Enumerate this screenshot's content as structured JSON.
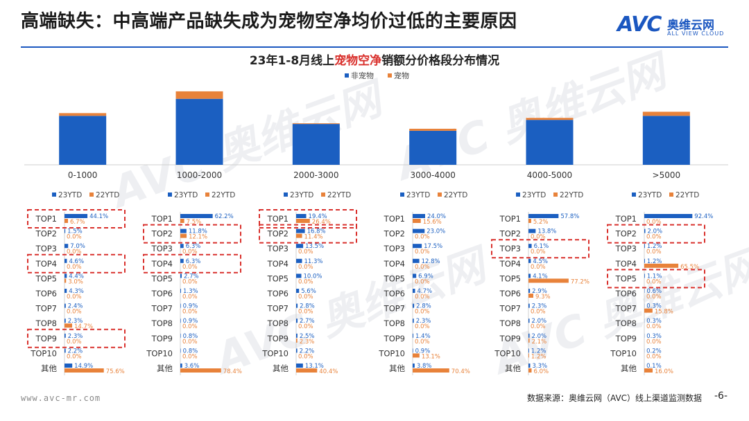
{
  "slide": {
    "title": "高端缺失：中高端产品缺失成为宠物空净均价过低的主要原因",
    "logo_mark": "AVC",
    "logo_cn": "奥维云网",
    "logo_en": "ALL VIEW CLOUD",
    "footer_url": "www.avc-mr.com",
    "footer_source": "数据来源：奥维云网（AVC）线上渠道监测数据",
    "page_number": "-6-",
    "watermark_text": "AVC 奥维云网",
    "watermark_sub": "ALL VIEW CLOUD"
  },
  "colors": {
    "blue": "#1b5fc1",
    "orange": "#e8823a",
    "red_dash": "#d9302c",
    "brand": "#1b57c0"
  },
  "chart_data": [
    {
      "type": "bar",
      "stacked": true,
      "title_parts": [
        {
          "text": "23年1-8月线上",
          "highlight": false
        },
        {
          "text": "宠物空净",
          "highlight": true
        },
        {
          "text": "销额分价格段分布情况",
          "highlight": false
        }
      ],
      "legend": [
        "非宠物",
        "宠物"
      ],
      "legend_position": "top-center",
      "categories": [
        "0-1000",
        "1000-2000",
        "2000-3000",
        "3000-4000",
        "4000-5000",
        ">5000"
      ],
      "series": [
        {
          "name": "非宠物",
          "values": [
            72,
            97,
            60,
            50,
            66,
            72
          ]
        },
        {
          "name": "宠物",
          "values": [
            4,
            11,
            1,
            3,
            3,
            6
          ]
        }
      ],
      "ylim": [
        0,
        112
      ],
      "grid": false
    },
    {
      "type": "bar",
      "orientation": "horizontal",
      "legend": [
        "23YTD",
        "22YTD"
      ],
      "legend_position": "top",
      "rows": [
        "TOP1",
        "TOP2",
        "TOP3",
        "TOP4",
        "TOP5",
        "TOP6",
        "TOP7",
        "TOP8",
        "TOP9",
        "TOP10",
        "其他"
      ],
      "panels": [
        {
          "category": "0-1000",
          "y23": [
            44.1,
            1.5,
            7.0,
            4.6,
            4.4,
            4.3,
            2.4,
            2.3,
            2.3,
            2.2,
            14.9
          ],
          "y22": [
            6.7,
            0.0,
            0.0,
            0.0,
            3.0,
            0.0,
            0.0,
            14.7,
            0.0,
            0.0,
            75.6
          ],
          "highlight_rows": [
            "TOP1",
            "TOP4",
            "TOP9"
          ]
        },
        {
          "category": "1000-2000",
          "y23": [
            62.2,
            11.8,
            6.3,
            6.3,
            2.7,
            1.3,
            0.9,
            0.9,
            0.8,
            0.8,
            3.6
          ],
          "y22": [
            7.5,
            12.1,
            0.0,
            0.0,
            0.0,
            0.0,
            0.0,
            0.0,
            0.0,
            0.0,
            78.4
          ],
          "highlight_rows": [
            "TOP2",
            "TOP4"
          ]
        },
        {
          "category": "2000-3000",
          "y23": [
            19.4,
            16.8,
            13.5,
            11.3,
            10.0,
            5.6,
            2.8,
            2.7,
            2.5,
            2.2,
            13.1
          ],
          "y22": [
            26.4,
            11.4,
            0.0,
            0.0,
            0.0,
            0.0,
            0.0,
            0.0,
            2.3,
            0.0,
            40.4
          ],
          "highlight_rows": [
            "TOP1",
            "TOP2"
          ]
        },
        {
          "category": "3000-4000",
          "y23": [
            24.0,
            23.0,
            17.5,
            12.8,
            6.9,
            4.7,
            2.8,
            2.3,
            1.4,
            0.9,
            3.8
          ],
          "y22": [
            15.6,
            0.0,
            0.0,
            0.0,
            0.0,
            0.0,
            0.0,
            0.0,
            0.0,
            13.1,
            70.4
          ],
          "highlight_rows": []
        },
        {
          "category": "4000-5000",
          "y23": [
            57.8,
            13.8,
            6.1,
            4.5,
            4.1,
            2.9,
            2.3,
            2.0,
            2.0,
            1.2,
            3.3
          ],
          "y22": [
            5.2,
            0.0,
            0.0,
            0.0,
            77.2,
            9.3,
            0.0,
            0.0,
            2.1,
            1.2,
            6.0
          ],
          "highlight_rows": [
            "TOP3"
          ]
        },
        {
          "category": ">5000",
          "y23": [
            92.4,
            2.0,
            1.2,
            1.2,
            1.1,
            0.6,
            0.3,
            0.3,
            0.3,
            0.2,
            0.1
          ],
          "y22": [
            0.0,
            0.0,
            0.0,
            65.5,
            0.0,
            0.0,
            15.8,
            0.0,
            0.0,
            0.0,
            16.0
          ],
          "highlight_rows": [
            "TOP2",
            "TOP5"
          ]
        }
      ]
    }
  ]
}
